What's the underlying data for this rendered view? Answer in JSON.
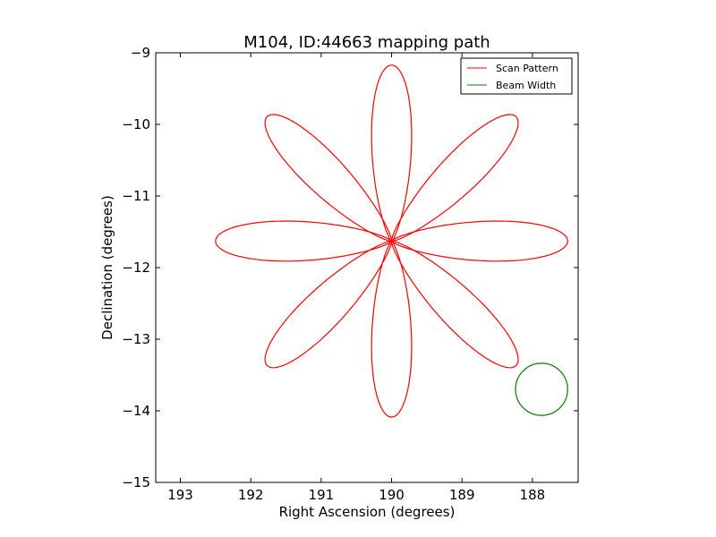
{
  "chart_data": {
    "type": "line",
    "title": "M104, ID:44663 mapping path",
    "xlabel": "Right Ascension (degrees)",
    "ylabel": "Declination (degrees)",
    "xlim": [
      193.35,
      187.35
    ],
    "ylim": [
      -15,
      -9
    ],
    "x_ticks": [
      193,
      192,
      191,
      190,
      189,
      188
    ],
    "x_tick_labels": [
      "193",
      "192",
      "191",
      "190",
      "189",
      "188"
    ],
    "y_ticks": [
      -9,
      -10,
      -11,
      -12,
      -13,
      -14,
      -15
    ],
    "y_tick_labels": [
      "−9",
      "−10",
      "−11",
      "−12",
      "−13",
      "−14",
      "−15"
    ],
    "grid": false,
    "legend_position": "top-right",
    "series": [
      {
        "name": "Scan Pattern",
        "kind": "rose",
        "color": "#ff0000",
        "center": [
          190.0,
          -11.63
        ],
        "petals": 8,
        "petal_length_deg": 2.5,
        "petal_half_width_deg": 0.33
      },
      {
        "name": "Beam Width",
        "kind": "circle",
        "color": "#008000",
        "center": [
          187.87,
          -13.7
        ],
        "radius_deg": 0.37
      }
    ]
  }
}
